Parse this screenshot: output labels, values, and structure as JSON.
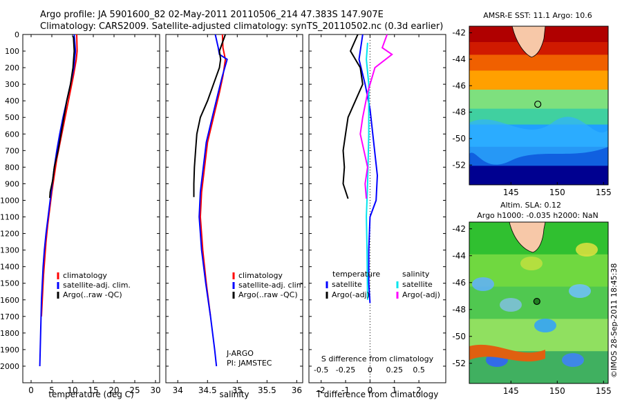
{
  "header": {
    "line1": "Argo profile: JA 5901600_82 02-May-2011 20110506_214 47.383S 147.907E",
    "line2": "Climatology: CARS2009. Satellite-adjusted climatology: synTS_20110502.nc (0.3d earlier)"
  },
  "chart_data": [
    {
      "type": "line",
      "panel": "temperature",
      "xlabel": "temperature (deg C)",
      "ylabel": "",
      "xlim": [
        -2,
        31
      ],
      "ylim": [
        2100,
        0
      ],
      "xticks": [
        "0",
        "5",
        "10",
        "15",
        "20",
        "25",
        "30"
      ],
      "yticks": [
        "0",
        "100",
        "200",
        "300",
        "400",
        "500",
        "600",
        "700",
        "800",
        "900",
        "1000",
        "1100",
        "1200",
        "1300",
        "1400",
        "1500",
        "1600",
        "1700",
        "1800",
        "1900",
        "2000"
      ],
      "legend": [
        "climatology",
        "satellite-adj. clim.",
        "Argo(..raw -QC)"
      ],
      "series": [
        {
          "name": "climatology",
          "color": "#ff0000",
          "points": [
            [
              11,
              0
            ],
            [
              11.1,
              100
            ],
            [
              10.9,
              150
            ],
            [
              10.2,
              250
            ],
            [
              9.4,
              350
            ],
            [
              8.6,
              450
            ],
            [
              7.8,
              550
            ],
            [
              7,
              650
            ],
            [
              6.2,
              750
            ],
            [
              5.6,
              850
            ],
            [
              5,
              950
            ],
            [
              4.5,
              1050
            ],
            [
              4,
              1150
            ],
            [
              3.6,
              1250
            ],
            [
              3.3,
              1350
            ],
            [
              3,
              1450
            ],
            [
              2.8,
              1550
            ],
            [
              2.6,
              1650
            ],
            [
              2.5,
              1700
            ]
          ]
        },
        {
          "name": "satellite-adj. clim.",
          "color": "#0000ff",
          "points": [
            [
              10.4,
              0
            ],
            [
              10.7,
              100
            ],
            [
              10.3,
              200
            ],
            [
              9.5,
              300
            ],
            [
              8.6,
              400
            ],
            [
              7.7,
              500
            ],
            [
              6.9,
              600
            ],
            [
              6.2,
              700
            ],
            [
              5.6,
              800
            ],
            [
              5.1,
              900
            ],
            [
              4.6,
              1000
            ],
            [
              4.1,
              1100
            ],
            [
              3.6,
              1200
            ],
            [
              3.2,
              1300
            ],
            [
              2.9,
              1400
            ],
            [
              2.7,
              1500
            ],
            [
              2.5,
              1600
            ],
            [
              2.4,
              1700
            ],
            [
              2.3,
              1800
            ],
            [
              2.2,
              1900
            ],
            [
              2.1,
              2000
            ]
          ]
        },
        {
          "name": "Argo(..raw -QC)",
          "color": "#000000",
          "points": [
            [
              10.2,
              10
            ],
            [
              10.4,
              100
            ],
            [
              10.1,
              200
            ],
            [
              9.5,
              300
            ],
            [
              8.6,
              400
            ],
            [
              7.9,
              500
            ],
            [
              7.2,
              600
            ],
            [
              6.5,
              700
            ],
            [
              5.6,
              800
            ],
            [
              5.2,
              880
            ],
            [
              4.6,
              950
            ],
            [
              4.5,
              985
            ]
          ]
        }
      ]
    },
    {
      "type": "line",
      "panel": "salinity",
      "xlabel": "salinity",
      "ylabel": "",
      "xlim": [
        33.8,
        36.1
      ],
      "ylim": [
        2100,
        0
      ],
      "xticks": [
        "34",
        "34.5",
        "35",
        "35.5",
        "36"
      ],
      "legend": [
        "climatology",
        "satellite-adj. clim.",
        "Argo(..raw -QC)"
      ],
      "annotation": [
        "J-ARGO",
        "PI: JAMSTEC"
      ],
      "series": [
        {
          "name": "climatology",
          "color": "#ff0000",
          "points": [
            [
              34.75,
              0
            ],
            [
              34.76,
              80
            ],
            [
              34.8,
              150
            ],
            [
              34.76,
              250
            ],
            [
              34.7,
              350
            ],
            [
              34.6,
              500
            ],
            [
              34.5,
              650
            ],
            [
              34.45,
              800
            ],
            [
              34.4,
              950
            ],
            [
              34.38,
              1100
            ],
            [
              34.42,
              1300
            ],
            [
              34.48,
              1500
            ],
            [
              34.55,
              1700
            ]
          ]
        },
        {
          "name": "satellite-adj. clim.",
          "color": "#0000ff",
          "points": [
            [
              34.63,
              0
            ],
            [
              34.68,
              80
            ],
            [
              34.7,
              120
            ],
            [
              34.83,
              150
            ],
            [
              34.75,
              250
            ],
            [
              34.68,
              350
            ],
            [
              34.58,
              500
            ],
            [
              34.48,
              650
            ],
            [
              34.43,
              800
            ],
            [
              34.38,
              950
            ],
            [
              34.36,
              1100
            ],
            [
              34.4,
              1300
            ],
            [
              34.47,
              1500
            ],
            [
              34.55,
              1700
            ],
            [
              34.62,
              1900
            ],
            [
              34.65,
              2000
            ]
          ]
        },
        {
          "name": "Argo(..raw -QC)",
          "color": "#000000",
          "points": [
            [
              34.8,
              0
            ],
            [
              34.74,
              60
            ],
            [
              34.7,
              100
            ],
            [
              34.72,
              150
            ],
            [
              34.7,
              200
            ],
            [
              34.6,
              300
            ],
            [
              34.5,
              400
            ],
            [
              34.38,
              500
            ],
            [
              34.32,
              600
            ],
            [
              34.3,
              700
            ],
            [
              34.28,
              800
            ],
            [
              34.27,
              900
            ],
            [
              34.27,
              980
            ]
          ]
        }
      ]
    },
    {
      "type": "line",
      "panel": "difference",
      "xlabel": "T difference from climatology",
      "xlabel_top": "S difference from climatology",
      "xlim": [
        -2.5,
        3.1
      ],
      "ylim": [
        2100,
        0
      ],
      "xticks": [
        "-2",
        "-1",
        "0",
        "1",
        "2"
      ],
      "xticks_top": [
        "-0.5",
        "-0.25",
        "0",
        "0.25",
        "0.5"
      ],
      "legend": {
        "temperature_header": "temperature",
        "salinity_header": "salinity",
        "entries": [
          "satellite",
          "Argo(-adj)",
          "satellite",
          "Argo(-adj)"
        ]
      },
      "series": [
        {
          "name": "satellite",
          "color": "#0000ff",
          "points": [
            [
              -0.3,
              0
            ],
            [
              -0.45,
              150
            ],
            [
              -0.2,
              300
            ],
            [
              0,
              450
            ],
            [
              0.15,
              650
            ],
            [
              0.3,
              850
            ],
            [
              0.25,
              1000
            ],
            [
              0,
              1100
            ],
            [
              -0.05,
              1300
            ],
            [
              -0.05,
              1500
            ],
            [
              0,
              1620
            ]
          ]
        },
        {
          "name": "Argo(-adj)",
          "color": "#000000",
          "points": [
            [
              -0.5,
              0
            ],
            [
              -0.8,
              100
            ],
            [
              -0.4,
              200
            ],
            [
              -0.3,
              300
            ],
            [
              -0.6,
              400
            ],
            [
              -0.9,
              500
            ],
            [
              -1,
              600
            ],
            [
              -1.1,
              700
            ],
            [
              -1.05,
              800
            ],
            [
              -1.1,
              900
            ],
            [
              -0.9,
              990
            ]
          ]
        },
        {
          "name": "satellite",
          "color": "#00e5ee",
          "points": [
            [
              -0.1,
              50
            ],
            [
              -0.15,
              150
            ],
            [
              -0.05,
              300
            ],
            [
              -0.05,
              600
            ],
            [
              -0.1,
              900
            ],
            [
              -0.15,
              1100
            ],
            [
              -0.12,
              1300
            ],
            [
              -0.1,
              1600
            ]
          ]
        },
        {
          "name": "Argo(-adj)",
          "color": "#ff00ff",
          "points": [
            [
              0.7,
              0
            ],
            [
              0.5,
              80
            ],
            [
              0.9,
              120
            ],
            [
              0.2,
              200
            ],
            [
              -0.1,
              350
            ],
            [
              -0.3,
              500
            ],
            [
              -0.4,
              600
            ],
            [
              -0.25,
              700
            ],
            [
              -0.1,
              800
            ],
            [
              -0.2,
              900
            ],
            [
              -0.15,
              990
            ]
          ]
        }
      ]
    },
    {
      "type": "heatmap",
      "panel": "sst_map",
      "title": "AMSR-E SST: 11.1  Argo: 10.6",
      "xlim": [
        140.5,
        155.5
      ],
      "ylim": [
        -53.5,
        -41.5
      ],
      "xticks": [
        "145",
        "150",
        "155"
      ],
      "yticks": [
        "-42",
        "-44",
        "-46",
        "-48",
        "-50",
        "-52"
      ],
      "marker": {
        "lon": 147.9,
        "lat": -47.4
      }
    },
    {
      "type": "heatmap",
      "panel": "sla_map",
      "title": "Altim. SLA: 0.12",
      "subtitle": "Argo h1000: -0.035 h2000: NaN",
      "xlim": [
        140.5,
        155.5
      ],
      "ylim": [
        -53.5,
        -41.5
      ],
      "xticks": [
        "145",
        "150",
        "155"
      ],
      "yticks": [
        "-42",
        "-44",
        "-46",
        "-48",
        "-50",
        "-52"
      ],
      "marker": {
        "lon": 147.8,
        "lat": -47.4
      }
    }
  ],
  "footer": {
    "stamp": "©IMOS 28-Sep-2011 18:45:38"
  }
}
